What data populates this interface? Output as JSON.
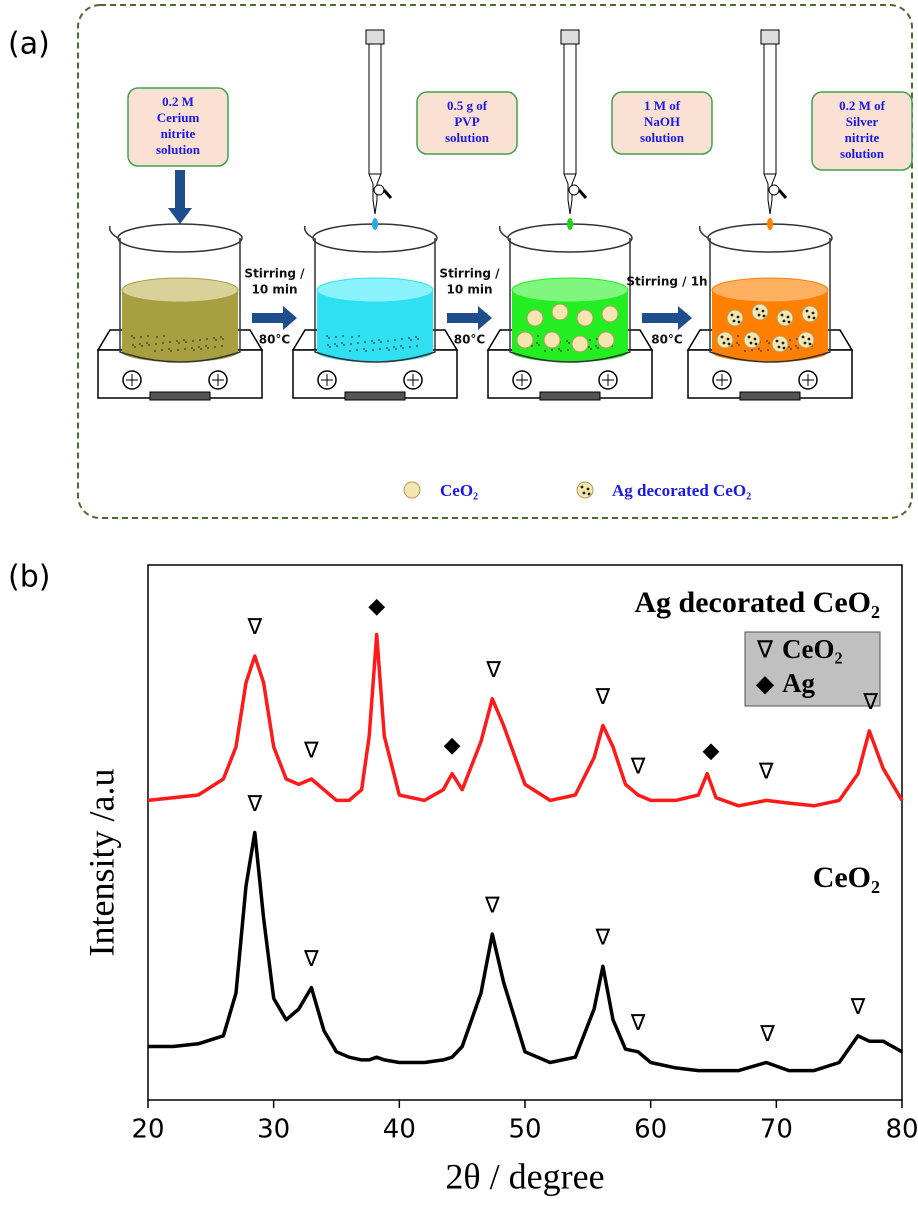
{
  "panel_a": {
    "label": "(a)",
    "steps": [
      {
        "lines": [
          "0.2 M",
          "Cerium",
          "nitrite",
          "solution"
        ]
      },
      {
        "lines": [
          "0.5 g of",
          "PVP",
          "solution"
        ]
      },
      {
        "lines": [
          "1 M of",
          "NaOH",
          "solution"
        ]
      },
      {
        "lines": [
          "0.2 M of",
          "Silver",
          "nitrite",
          "solution"
        ]
      }
    ],
    "arrows": [
      {
        "lines": [
          "Stirring /",
          "10 min"
        ],
        "temp": "80°C"
      },
      {
        "lines": [
          "Stirring /",
          "10 min"
        ],
        "temp": "80°C"
      },
      {
        "lines": [
          "Stirring / 1h"
        ],
        "temp": "80°C"
      }
    ],
    "legend": [
      "CeO₂",
      "Ag decorated CeO₂"
    ]
  },
  "chart_data": {
    "type": "line",
    "panel_label": "(b)",
    "x_label": "2θ / degree",
    "y_label": "Intensity /a.u",
    "xlim": [
      20,
      80
    ],
    "xticks": [
      20,
      30,
      40,
      50,
      60,
      70,
      80
    ],
    "ylim": [
      0,
      100
    ],
    "x": [
      20,
      22,
      24,
      26,
      27,
      27.8,
      28.5,
      29.2,
      30,
      31,
      32,
      33,
      34,
      35,
      36,
      37,
      37.6,
      38.2,
      38.8,
      40,
      42,
      43.5,
      44.2,
      45,
      46.5,
      47.4,
      48.3,
      50,
      52,
      54,
      55.5,
      56.2,
      57,
      58,
      59,
      60,
      62,
      63.8,
      64.5,
      65.2,
      67,
      69.2,
      71,
      73,
      75,
      76.5,
      77.4,
      78.5,
      80
    ],
    "series": [
      {
        "name": "Ag decorated CeO₂",
        "color": "#ff1a1a",
        "values": [
          56,
          56.5,
          57,
          60,
          66,
          78,
          83,
          78,
          66,
          60,
          59,
          60,
          58,
          56,
          56,
          58,
          68,
          87,
          68,
          57,
          56,
          58,
          61,
          58,
          67,
          75,
          70,
          59,
          56,
          57,
          64,
          70,
          66,
          59,
          57,
          56,
          56,
          57,
          61,
          56.5,
          55,
          56,
          55.5,
          55,
          56,
          61,
          69,
          62,
          56
        ]
      },
      {
        "name": "CeO₂",
        "color": "#000000",
        "values": [
          10,
          10,
          10.5,
          12,
          20,
          40,
          50,
          34,
          19,
          15,
          17,
          21,
          13,
          9,
          8,
          7.5,
          7.5,
          8,
          7.5,
          7,
          7,
          7.5,
          8,
          10,
          20,
          31,
          22,
          9,
          7,
          8,
          17,
          25,
          15,
          9.5,
          9,
          7,
          6,
          5.5,
          5.5,
          5.5,
          5.5,
          7,
          5.5,
          5.5,
          7,
          12,
          11,
          11,
          9
        ]
      }
    ],
    "legend": [
      {
        "symbol": "∇",
        "label": "CeO₂"
      },
      {
        "symbol": "◆",
        "label": "Ag"
      }
    ],
    "annotations": [
      {
        "symbol": "∇",
        "x": 28.5,
        "y": 88
      },
      {
        "symbol": "∇",
        "x": 33,
        "y": 65
      },
      {
        "symbol": "◆",
        "x": 38.2,
        "y": 92
      },
      {
        "symbol": "◆",
        "x": 44.2,
        "y": 66
      },
      {
        "symbol": "∇",
        "x": 47.5,
        "y": 80
      },
      {
        "symbol": "∇",
        "x": 56.2,
        "y": 75
      },
      {
        "symbol": "∇",
        "x": 59,
        "y": 62
      },
      {
        "symbol": "◆",
        "x": 64.8,
        "y": 65
      },
      {
        "symbol": "∇",
        "x": 69.2,
        "y": 61
      },
      {
        "symbol": "∇",
        "x": 77.5,
        "y": 74
      },
      {
        "symbol": "∇",
        "x": 28.5,
        "y": 55
      },
      {
        "symbol": "∇",
        "x": 33,
        "y": 26
      },
      {
        "symbol": "∇",
        "x": 47.4,
        "y": 36
      },
      {
        "symbol": "∇",
        "x": 56.2,
        "y": 30
      },
      {
        "symbol": "∇",
        "x": 59,
        "y": 14
      },
      {
        "symbol": "∇",
        "x": 69.3,
        "y": 12
      },
      {
        "symbol": "∇",
        "x": 76.5,
        "y": 17
      }
    ]
  }
}
